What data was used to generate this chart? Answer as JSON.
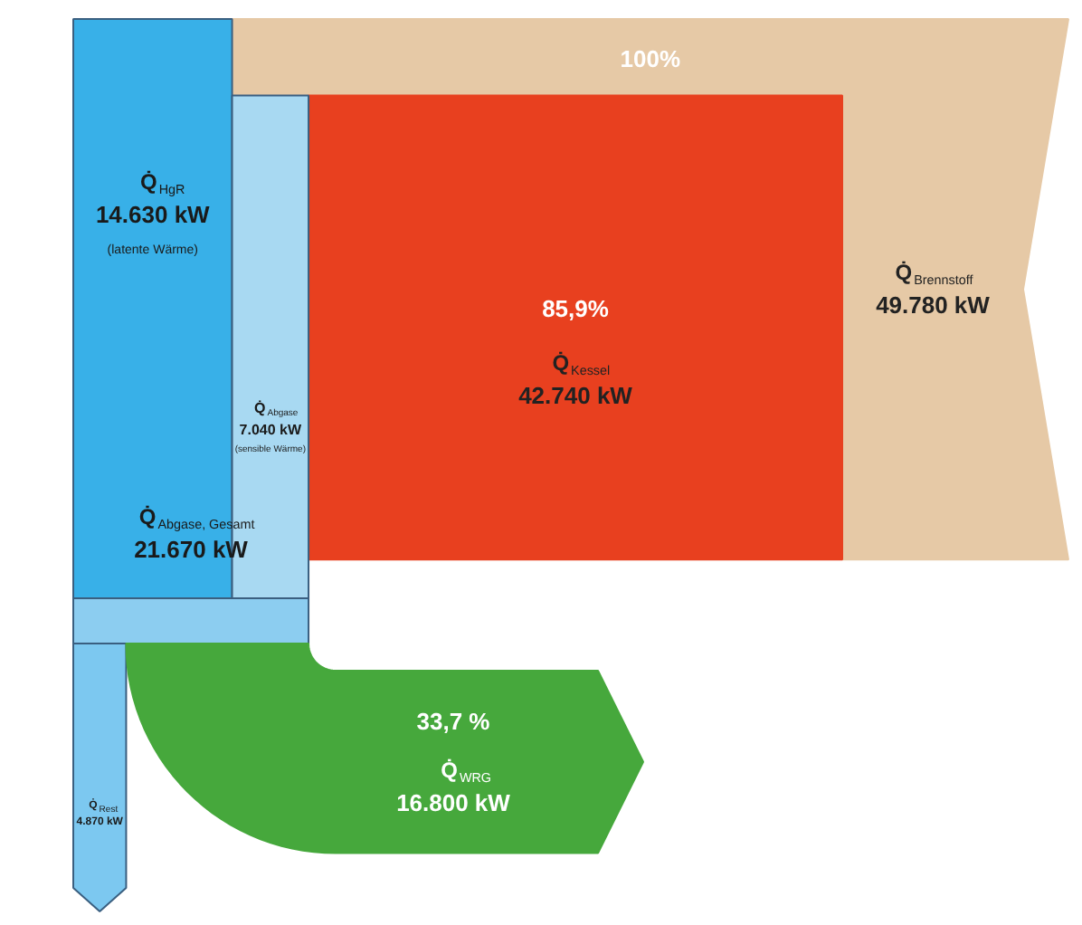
{
  "chart_data": {
    "type": "other",
    "categories": [
      "Q̇$_{Brennstoff}$",
      "Q̇$_{Kessel}$",
      "Q̇$_{HgR}$",
      "Q̇$_{Abgase}$",
      "Q̇$_{Abgase, Gesamt}$",
      "Q̇$_{WRG}$",
      "Q̇$_{Rest}$"
    ],
    "values": [
      49780,
      42740,
      14630,
      7040,
      21670,
      16800,
      4870
    ],
    "value_labels": [
      "49.780 kW",
      "42.740 kW",
      "14.630 kW",
      "7.040 kW",
      "21.670 kW",
      "16.800 kW",
      "4.870 kW"
    ],
    "colors": [
      "#e6c9a6",
      "#e8401f",
      "#38b0e8",
      "#a8d9f2",
      "#8ccdf0",
      "#46a83c",
      "#7cc8f0"
    ],
    "annotations": [
      "100%",
      "85,9%",
      "33,7 %",
      "(latente Wärme)",
      "(sensible Wärme)"
    ]
  }
}
